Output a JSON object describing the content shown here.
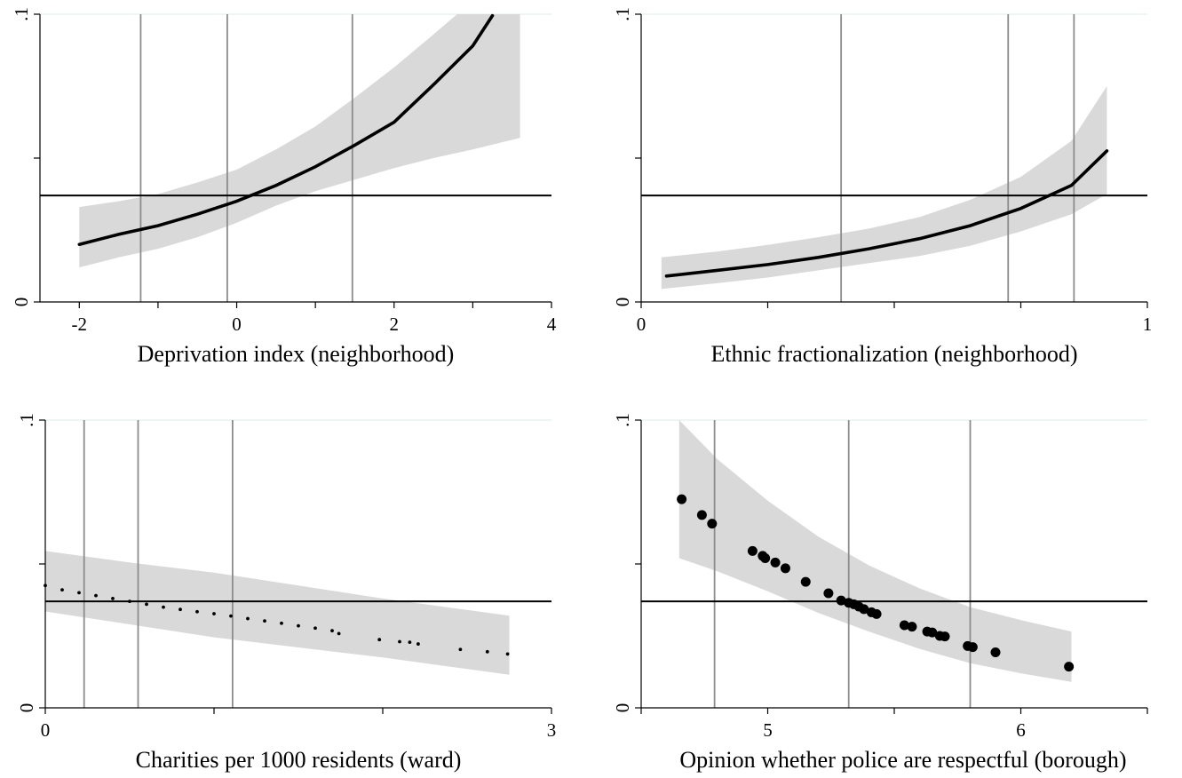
{
  "chart_data": [
    {
      "type": "line",
      "xlabel": "Deprivation index (neighborhood)",
      "xlim": [
        -2.5,
        4
      ],
      "ylim": [
        0,
        0.1
      ],
      "xticks": [
        {
          "v": -2,
          "label": "-2"
        },
        {
          "v": -1,
          "label": ""
        },
        {
          "v": 0,
          "label": "0"
        },
        {
          "v": 1,
          "label": ""
        },
        {
          "v": 2,
          "label": "2"
        },
        {
          "v": 3,
          "label": ""
        },
        {
          "v": 4,
          "label": "4"
        }
      ],
      "yticks": [
        {
          "v": 0,
          "label": "0"
        },
        {
          "v": 0.05,
          "label": ""
        },
        {
          "v": 0.1,
          "label": ".1"
        }
      ],
      "reference_vlines": [
        -1.22,
        -0.12,
        1.47
      ],
      "reference_hline": 0.037,
      "markers": "line",
      "estimate": {
        "x": [
          -2.0,
          -1.5,
          -1.0,
          -0.5,
          0.0,
          0.5,
          1.0,
          1.5,
          2.0,
          2.5,
          3.0,
          3.25
        ],
        "y": [
          0.02,
          0.0235,
          0.0265,
          0.0305,
          0.035,
          0.0405,
          0.047,
          0.0545,
          0.0625,
          0.0755,
          0.089,
          0.0995
        ]
      },
      "ci_upper": {
        "x": [
          -2.0,
          -1.5,
          -1.0,
          -0.5,
          0.0,
          0.5,
          1.0,
          1.5,
          2.0,
          2.5,
          2.8,
          3.6
        ],
        "y": [
          0.033,
          0.035,
          0.0375,
          0.0415,
          0.046,
          0.053,
          0.061,
          0.071,
          0.0815,
          0.093,
          0.1,
          0.1
        ]
      },
      "ci_lower": {
        "x": [
          -2.0,
          -1.5,
          -1.0,
          -0.5,
          0.0,
          0.5,
          1.0,
          1.5,
          2.0,
          2.5,
          3.0,
          3.6
        ],
        "y": [
          0.012,
          0.0155,
          0.0185,
          0.0225,
          0.0275,
          0.0335,
          0.0385,
          0.0425,
          0.0465,
          0.05,
          0.053,
          0.057
        ]
      }
    },
    {
      "type": "line",
      "xlabel": "Ethnic fractionalization (neighborhood)",
      "xlim": [
        0,
        1
      ],
      "ylim": [
        0,
        0.1
      ],
      "xticks": [
        {
          "v": 0,
          "label": "0"
        },
        {
          "v": 0.25,
          "label": ""
        },
        {
          "v": 0.5,
          "label": ""
        },
        {
          "v": 0.75,
          "label": ""
        },
        {
          "v": 1,
          "label": "1"
        }
      ],
      "yticks": [
        {
          "v": 0,
          "label": "0"
        },
        {
          "v": 0.05,
          "label": ""
        },
        {
          "v": 0.1,
          "label": ".1"
        }
      ],
      "reference_vlines": [
        0.395,
        0.725,
        0.855
      ],
      "reference_hline": 0.037,
      "markers": "line",
      "estimate": {
        "x": [
          0.05,
          0.15,
          0.25,
          0.35,
          0.45,
          0.55,
          0.65,
          0.75,
          0.85,
          0.92
        ],
        "y": [
          0.009,
          0.011,
          0.013,
          0.0155,
          0.0185,
          0.022,
          0.0265,
          0.0325,
          0.0405,
          0.0525
        ]
      },
      "ci_upper": {
        "x": [
          0.04,
          0.15,
          0.25,
          0.35,
          0.45,
          0.55,
          0.65,
          0.75,
          0.85,
          0.92
        ],
        "y": [
          0.0155,
          0.0175,
          0.0198,
          0.0225,
          0.0255,
          0.0295,
          0.0355,
          0.0435,
          0.056,
          0.075
        ]
      },
      "ci_lower": {
        "x": [
          0.04,
          0.15,
          0.25,
          0.35,
          0.45,
          0.55,
          0.65,
          0.75,
          0.85,
          0.92
        ],
        "y": [
          0.0045,
          0.0065,
          0.0085,
          0.011,
          0.0135,
          0.016,
          0.0195,
          0.0245,
          0.0305,
          0.0375
        ]
      }
    },
    {
      "type": "line",
      "xlabel": "Charities per 1000 residents (ward)",
      "xlim": [
        0,
        3
      ],
      "ylim": [
        0,
        0.1
      ],
      "xticks": [
        {
          "v": 0,
          "label": "0"
        },
        {
          "v": 1,
          "label": ""
        },
        {
          "v": 2,
          "label": ""
        },
        {
          "v": 3,
          "label": "3"
        }
      ],
      "yticks": [
        {
          "v": 0,
          "label": "0"
        },
        {
          "v": 0.05,
          "label": ""
        },
        {
          "v": 0.1,
          "label": ".1"
        }
      ],
      "reference_vlines": [
        0.23,
        0.55,
        1.11
      ],
      "reference_hline": 0.037,
      "markers": "dots",
      "estimate": {
        "x": [
          0.0,
          0.1,
          0.2,
          0.3,
          0.4,
          0.5,
          0.6,
          0.7,
          0.8,
          0.9,
          1.0,
          1.1,
          1.2,
          1.3,
          1.4,
          1.5,
          1.6,
          1.7,
          1.74,
          1.98,
          2.1,
          2.16,
          2.21,
          2.46,
          2.62,
          2.74
        ],
        "y": [
          0.0425,
          0.041,
          0.04,
          0.039,
          0.038,
          0.037,
          0.036,
          0.035,
          0.0342,
          0.0334,
          0.0327,
          0.0319,
          0.031,
          0.0302,
          0.0294,
          0.0285,
          0.0277,
          0.0268,
          0.0258,
          0.0237,
          0.023,
          0.0228,
          0.0222,
          0.0203,
          0.0195,
          0.0187
        ]
      },
      "ci_upper": {
        "x": [
          0.0,
          0.5,
          1.0,
          1.5,
          2.0,
          2.5,
          2.75
        ],
        "y": [
          0.0545,
          0.0505,
          0.047,
          0.0425,
          0.038,
          0.034,
          0.032
        ]
      },
      "ci_lower": {
        "x": [
          0.0,
          0.5,
          1.0,
          1.5,
          2.0,
          2.5,
          2.75
        ],
        "y": [
          0.0335,
          0.029,
          0.0245,
          0.021,
          0.0175,
          0.0135,
          0.0115
        ]
      }
    },
    {
      "type": "scatter",
      "xlabel": "Opinion whether police are respectful (borough)",
      "xlim": [
        4.5,
        6.5
      ],
      "ylim": [
        0,
        0.1
      ],
      "xticks": [
        {
          "v": 4.5,
          "label": ""
        },
        {
          "v": 5,
          "label": "5"
        },
        {
          "v": 5.5,
          "label": ""
        },
        {
          "v": 6,
          "label": "6"
        },
        {
          "v": 6.5,
          "label": ""
        }
      ],
      "yticks": [
        {
          "v": 0,
          "label": "0"
        },
        {
          "v": 0.05,
          "label": ""
        },
        {
          "v": 0.1,
          "label": ".1"
        }
      ],
      "reference_vlines": [
        4.79,
        5.32,
        5.8
      ],
      "reference_hline": 0.037,
      "markers": "dots",
      "estimate": {
        "x": [
          4.66,
          4.74,
          4.78,
          4.94,
          4.98,
          4.99,
          5.03,
          5.07,
          5.15,
          5.24,
          5.29,
          5.32,
          5.34,
          5.36,
          5.38,
          5.41,
          5.43,
          5.54,
          5.57,
          5.63,
          5.65,
          5.68,
          5.7,
          5.79,
          5.81,
          5.9,
          6.19
        ],
        "y": [
          0.0725,
          0.067,
          0.064,
          0.0545,
          0.0528,
          0.052,
          0.0505,
          0.0485,
          0.0438,
          0.0398,
          0.0373,
          0.0365,
          0.036,
          0.0352,
          0.0343,
          0.0332,
          0.0326,
          0.0287,
          0.0282,
          0.0265,
          0.0262,
          0.025,
          0.0248,
          0.0215,
          0.0211,
          0.0193,
          0.0143
        ]
      },
      "ci_upper": {
        "x": [
          4.65,
          4.8,
          5.0,
          5.2,
          5.4,
          5.6,
          5.8,
          6.0,
          6.2
        ],
        "y": [
          0.1,
          0.0865,
          0.072,
          0.0595,
          0.0495,
          0.0415,
          0.035,
          0.0305,
          0.0265
        ]
      },
      "ci_lower": {
        "x": [
          4.65,
          4.8,
          5.0,
          5.2,
          5.4,
          5.6,
          5.8,
          6.0,
          6.2
        ],
        "y": [
          0.052,
          0.0475,
          0.0405,
          0.033,
          0.0265,
          0.0205,
          0.0155,
          0.012,
          0.009
        ]
      }
    }
  ]
}
